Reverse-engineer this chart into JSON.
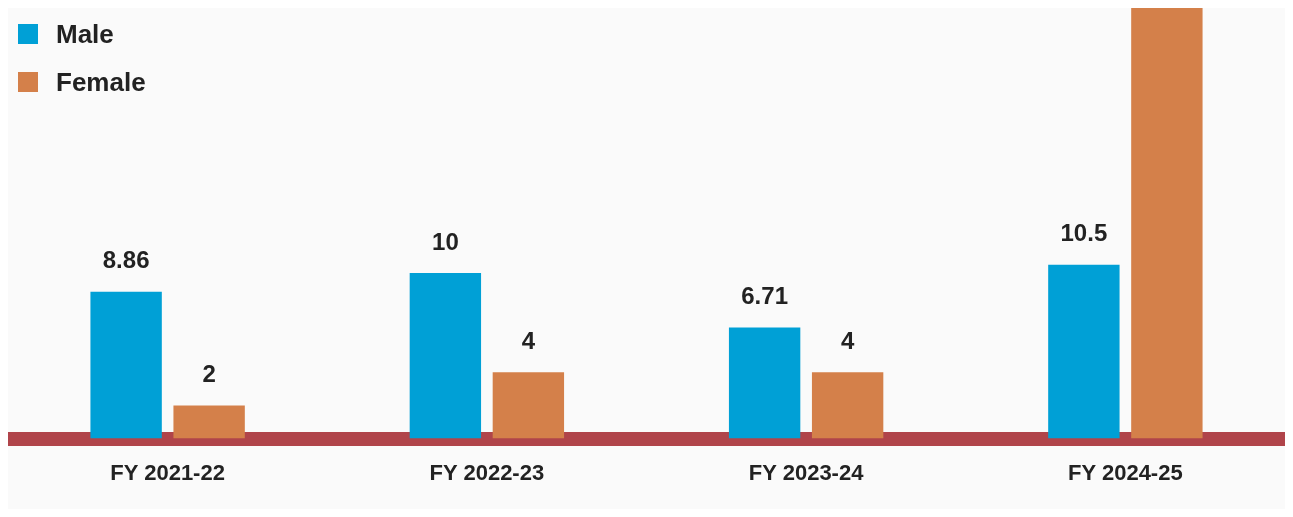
{
  "chart_data": {
    "type": "bar",
    "categories": [
      "FY 2021-22",
      "FY 2022-23",
      "FY 2023-24",
      "FY 2024-25"
    ],
    "series": [
      {
        "name": "Male",
        "color": "#00a0d6",
        "values": [
          8.86,
          10,
          6.71,
          10.5
        ],
        "value_labels": [
          "8.86",
          "10",
          "6.71",
          "10.5"
        ]
      },
      {
        "name": "Female",
        "color": "#d4804a",
        "values": [
          2,
          4,
          4,
          26
        ],
        "value_labels": [
          "2",
          "4",
          "4",
          null
        ]
      }
    ],
    "ylim": [
      0,
      26
    ],
    "legend": "top left",
    "grid": false
  }
}
